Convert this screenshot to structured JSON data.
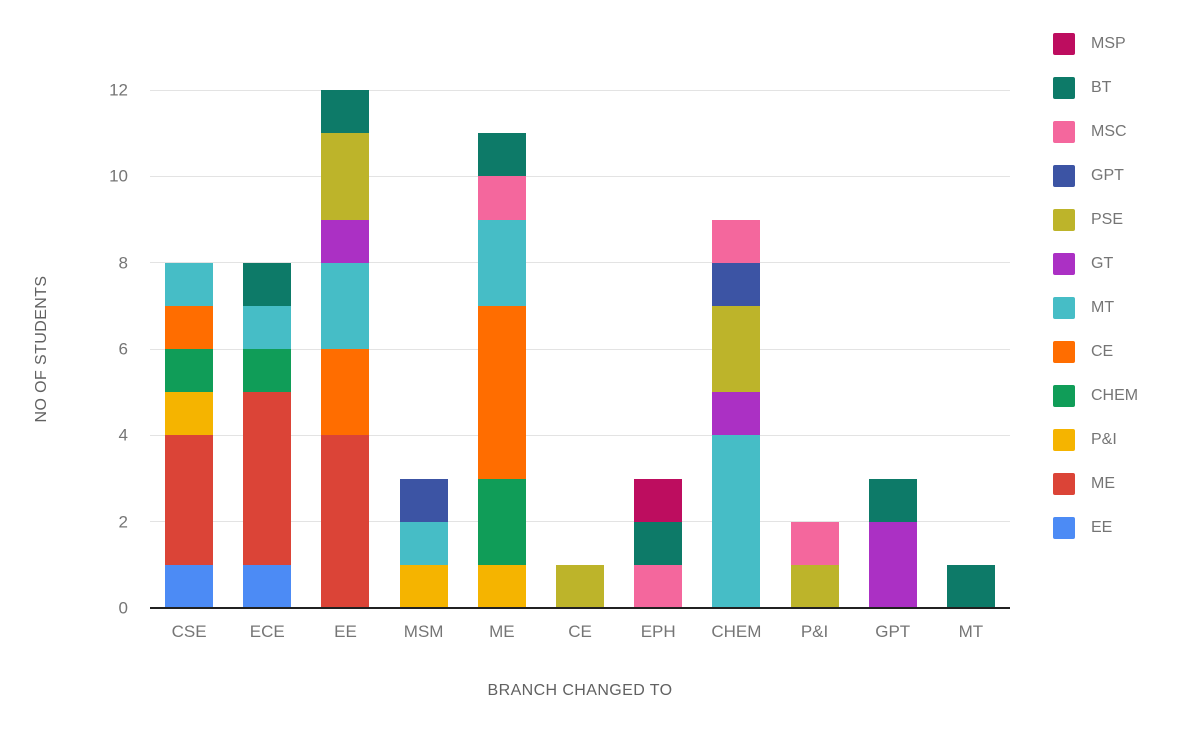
{
  "chart_data": {
    "type": "bar",
    "stacked": true,
    "title": "",
    "xlabel": "BRANCH CHANGED TO",
    "ylabel": "NO OF STUDENTS",
    "ylim": [
      0,
      12
    ],
    "yticks": [
      0,
      2,
      4,
      6,
      8,
      10,
      12
    ],
    "grid": true,
    "background": "#ffffff",
    "categories": [
      "CSE",
      "ECE",
      "EE",
      "MSM",
      "ME",
      "CE",
      "EPH",
      "CHEM",
      "P&I",
      "GPT",
      "MT"
    ],
    "series": [
      {
        "name": "EE",
        "color": "#4C8BF5",
        "values": [
          1,
          1,
          0,
          0,
          0,
          0,
          0,
          0,
          0,
          0,
          0
        ]
      },
      {
        "name": "ME",
        "color": "#DB4437",
        "values": [
          3,
          4,
          4,
          0,
          0,
          0,
          0,
          0,
          0,
          0,
          0
        ]
      },
      {
        "name": "P&I",
        "color": "#F5B400",
        "values": [
          1,
          0,
          0,
          1,
          1,
          0,
          0,
          0,
          0,
          0,
          0
        ]
      },
      {
        "name": "CHEM",
        "color": "#109D58",
        "values": [
          1,
          1,
          0,
          0,
          2,
          0,
          0,
          0,
          0,
          0,
          0
        ]
      },
      {
        "name": "CE",
        "color": "#FF6D00",
        "values": [
          1,
          0,
          2,
          0,
          4,
          0,
          0,
          0,
          0,
          0,
          0
        ]
      },
      {
        "name": "MT",
        "color": "#46BDC6",
        "values": [
          1,
          1,
          2,
          1,
          2,
          0,
          0,
          4,
          0,
          0,
          0
        ]
      },
      {
        "name": "GT",
        "color": "#AB30C4",
        "values": [
          0,
          0,
          1,
          0,
          0,
          0,
          0,
          1,
          0,
          2,
          0
        ]
      },
      {
        "name": "PSE",
        "color": "#BDB42A",
        "values": [
          0,
          0,
          2,
          0,
          0,
          1,
          0,
          2,
          1,
          0,
          0
        ]
      },
      {
        "name": "GPT",
        "color": "#3C54A4",
        "values": [
          0,
          0,
          0,
          1,
          0,
          0,
          0,
          1,
          0,
          0,
          0
        ]
      },
      {
        "name": "MSC",
        "color": "#F4679D",
        "values": [
          0,
          0,
          0,
          0,
          1,
          0,
          1,
          1,
          1,
          0,
          0
        ]
      },
      {
        "name": "BT",
        "color": "#0D7A68",
        "values": [
          0,
          1,
          1,
          0,
          1,
          0,
          1,
          0,
          0,
          1,
          1
        ]
      },
      {
        "name": "MSP",
        "color": "#BD0D5F",
        "values": [
          0,
          0,
          0,
          0,
          0,
          0,
          1,
          0,
          0,
          0,
          0
        ]
      }
    ],
    "legend": {
      "position": "right",
      "order": [
        "MSP",
        "BT",
        "MSC",
        "GPT",
        "PSE",
        "GT",
        "MT",
        "CE",
        "CHEM",
        "P&I",
        "ME",
        "EE"
      ]
    }
  }
}
